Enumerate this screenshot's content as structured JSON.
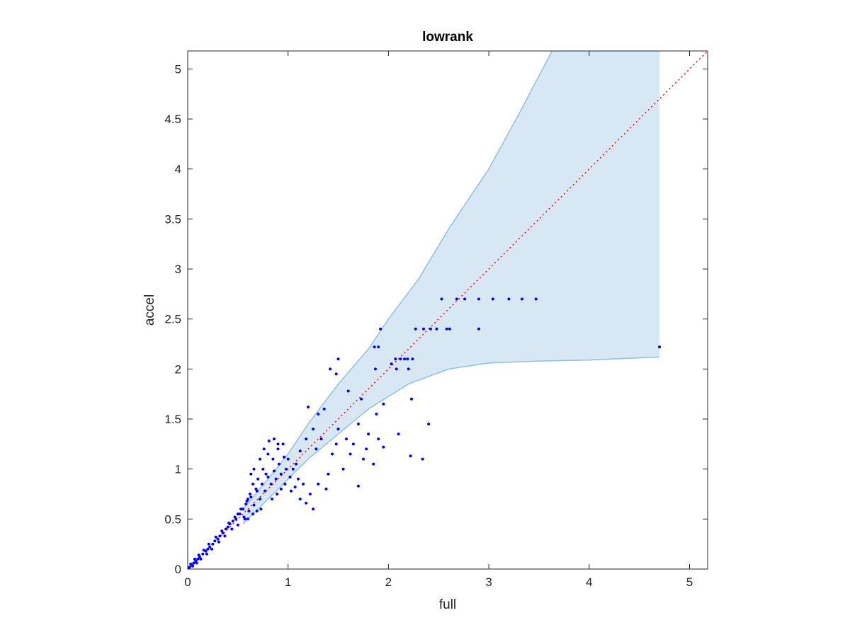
{
  "chart_data": {
    "type": "scatter",
    "title": "lowrank",
    "xlabel": "full",
    "ylabel": "accel",
    "xlim": [
      0,
      5.18
    ],
    "ylim": [
      0,
      5.18
    ],
    "xticks": [
      0,
      1,
      2,
      3,
      4,
      5
    ],
    "yticks": [
      0,
      0.5,
      1,
      1.5,
      2,
      2.5,
      3,
      3.5,
      4,
      4.5,
      5
    ],
    "xtick_labels": [
      "0",
      "1",
      "2",
      "3",
      "4",
      "5"
    ],
    "ytick_labels": [
      "0",
      "0.5",
      "1",
      "1.5",
      "2",
      "2.5",
      "3",
      "3.5",
      "4",
      "4.5",
      "5"
    ],
    "grid": false,
    "reference_line": {
      "style": "dotted",
      "color": "#ff0000",
      "from": [
        0,
        0
      ],
      "to": [
        5.18,
        5.18
      ]
    },
    "band": {
      "color_fill": "#d7e8f4",
      "color_edge": "#8fc0e0",
      "upper": [
        [
          0.55,
          0.6
        ],
        [
          0.8,
          0.9
        ],
        [
          1.0,
          1.15
        ],
        [
          1.2,
          1.45
        ],
        [
          1.5,
          1.85
        ],
        [
          1.8,
          2.2
        ],
        [
          2.0,
          2.5
        ],
        [
          2.3,
          2.9
        ],
        [
          2.6,
          3.4
        ],
        [
          3.0,
          4.0
        ],
        [
          3.3,
          4.55
        ],
        [
          3.63,
          5.18
        ],
        [
          4.7,
          5.18
        ]
      ],
      "lower": [
        [
          0.55,
          0.45
        ],
        [
          0.8,
          0.7
        ],
        [
          1.0,
          0.9
        ],
        [
          1.2,
          1.1
        ],
        [
          1.5,
          1.35
        ],
        [
          1.8,
          1.6
        ],
        [
          2.2,
          1.85
        ],
        [
          2.6,
          2.0
        ],
        [
          3.0,
          2.06
        ],
        [
          3.5,
          2.08
        ],
        [
          4.0,
          2.09
        ],
        [
          4.7,
          2.12
        ]
      ]
    },
    "series": [
      {
        "color": "#0000ff",
        "points": [
          [
            2.53,
            2.7
          ],
          [
            2.68,
            2.7
          ],
          [
            2.76,
            2.7
          ],
          [
            2.9,
            2.7
          ],
          [
            3.04,
            2.7
          ],
          [
            3.2,
            2.7
          ],
          [
            3.33,
            2.7
          ],
          [
            3.47,
            2.7
          ],
          [
            2.27,
            2.4
          ],
          [
            2.35,
            2.4
          ],
          [
            2.42,
            2.4
          ],
          [
            2.48,
            2.4
          ],
          [
            2.58,
            2.4
          ],
          [
            2.61,
            2.4
          ],
          [
            2.9,
            2.4
          ],
          [
            1.92,
            2.4
          ],
          [
            4.7,
            2.22
          ],
          [
            1.86,
            2.22
          ],
          [
            1.9,
            2.22
          ],
          [
            2.07,
            2.1
          ],
          [
            2.12,
            2.1
          ],
          [
            2.16,
            2.1
          ],
          [
            2.19,
            2.1
          ],
          [
            2.24,
            2.1
          ],
          [
            2.03,
            2.05
          ],
          [
            1.5,
            2.1
          ],
          [
            1.42,
            2.0
          ],
          [
            1.87,
            2.0
          ],
          [
            2.08,
            2.0
          ],
          [
            2.2,
            2.0
          ],
          [
            1.48,
            1.95
          ],
          [
            1.2,
            1.62
          ],
          [
            1.3,
            1.55
          ],
          [
            1.36,
            1.6
          ],
          [
            1.6,
            1.78
          ],
          [
            1.73,
            1.7
          ],
          [
            1.95,
            1.65
          ],
          [
            2.23,
            1.7
          ],
          [
            1.88,
            1.55
          ],
          [
            2.4,
            1.45
          ],
          [
            1.7,
            1.45
          ],
          [
            1.5,
            1.4
          ],
          [
            1.8,
            1.35
          ],
          [
            1.9,
            1.3
          ],
          [
            2.1,
            1.35
          ],
          [
            1.95,
            1.22
          ],
          [
            2.22,
            1.13
          ],
          [
            2.34,
            1.1
          ],
          [
            1.75,
            1.1
          ],
          [
            1.85,
            1.05
          ],
          [
            1.62,
            1.15
          ],
          [
            1.7,
            0.83
          ],
          [
            1.55,
            1.0
          ],
          [
            1.4,
            0.95
          ],
          [
            1.38,
            0.8
          ],
          [
            1.3,
            0.85
          ],
          [
            1.22,
            0.75
          ],
          [
            1.15,
            0.85
          ],
          [
            1.1,
            0.9
          ],
          [
            1.05,
            1.0
          ],
          [
            1.0,
            1.1
          ],
          [
            0.95,
            1.25
          ],
          [
            0.9,
            1.2
          ],
          [
            0.85,
            1.1
          ],
          [
            0.8,
            1.15
          ],
          [
            0.78,
            0.95
          ],
          [
            0.75,
            1.0
          ],
          [
            0.7,
            0.9
          ],
          [
            0.68,
            0.8
          ],
          [
            0.65,
            0.85
          ],
          [
            0.62,
            0.75
          ],
          [
            0.6,
            0.7
          ],
          [
            0.58,
            0.65
          ],
          [
            0.55,
            0.6
          ],
          [
            0.52,
            0.55
          ],
          [
            0.5,
            0.55
          ],
          [
            0.48,
            0.5
          ],
          [
            0.45,
            0.48
          ],
          [
            0.42,
            0.45
          ],
          [
            0.4,
            0.42
          ],
          [
            0.38,
            0.4
          ],
          [
            0.35,
            0.36
          ],
          [
            0.32,
            0.33
          ],
          [
            0.3,
            0.3
          ],
          [
            0.27,
            0.28
          ],
          [
            0.25,
            0.25
          ],
          [
            0.22,
            0.22
          ],
          [
            0.2,
            0.2
          ],
          [
            0.18,
            0.18
          ],
          [
            0.15,
            0.15
          ],
          [
            0.12,
            0.12
          ],
          [
            0.1,
            0.1
          ],
          [
            0.08,
            0.08
          ],
          [
            0.06,
            0.06
          ],
          [
            0.04,
            0.04
          ],
          [
            0.02,
            0.02
          ],
          [
            0.01,
            0.01
          ],
          [
            0.03,
            0.05
          ],
          [
            0.05,
            0.03
          ],
          [
            0.07,
            0.1
          ],
          [
            0.09,
            0.06
          ],
          [
            0.11,
            0.14
          ],
          [
            0.13,
            0.1
          ],
          [
            0.16,
            0.19
          ],
          [
            0.19,
            0.15
          ],
          [
            0.21,
            0.25
          ],
          [
            0.24,
            0.2
          ],
          [
            0.28,
            0.32
          ],
          [
            0.31,
            0.27
          ],
          [
            0.34,
            0.38
          ],
          [
            0.37,
            0.33
          ],
          [
            0.41,
            0.46
          ],
          [
            0.44,
            0.4
          ],
          [
            0.47,
            0.52
          ],
          [
            0.5,
            0.44
          ],
          [
            0.53,
            0.6
          ],
          [
            0.56,
            0.52
          ],
          [
            0.59,
            0.68
          ],
          [
            0.61,
            0.58
          ],
          [
            0.63,
            0.72
          ],
          [
            0.66,
            0.64
          ],
          [
            0.69,
            0.78
          ],
          [
            0.72,
            0.7
          ],
          [
            0.74,
            0.85
          ],
          [
            0.77,
            0.78
          ],
          [
            0.8,
            0.92
          ],
          [
            0.83,
            0.85
          ],
          [
            0.86,
            0.98
          ],
          [
            0.88,
            0.9
          ],
          [
            0.91,
            1.05
          ],
          [
            0.93,
            0.95
          ],
          [
            0.96,
            1.12
          ],
          [
            0.98,
            1.0
          ],
          [
            1.02,
            0.92
          ],
          [
            1.08,
            1.05
          ],
          [
            1.12,
            1.18
          ],
          [
            1.18,
            1.3
          ],
          [
            1.25,
            1.4
          ],
          [
            1.28,
            1.2
          ],
          [
            1.33,
            1.3
          ],
          [
            1.44,
            1.15
          ],
          [
            1.48,
            1.25
          ],
          [
            1.58,
            1.3
          ],
          [
            1.65,
            1.25
          ],
          [
            1.78,
            1.2
          ],
          [
            0.84,
            0.7
          ],
          [
            0.89,
            0.75
          ],
          [
            0.93,
            0.8
          ],
          [
            0.97,
            0.85
          ],
          [
            1.03,
            0.78
          ],
          [
            1.07,
            0.82
          ],
          [
            1.12,
            0.7
          ],
          [
            1.18,
            0.66
          ],
          [
            1.25,
            0.6
          ],
          [
            0.73,
            0.6
          ],
          [
            0.69,
            0.58
          ],
          [
            0.65,
            0.55
          ],
          [
            0.6,
            0.5
          ],
          [
            0.57,
            0.5
          ],
          [
            0.81,
            1.28
          ],
          [
            0.86,
            1.3
          ],
          [
            0.9,
            1.25
          ],
          [
            0.76,
            1.2
          ],
          [
            0.72,
            1.1
          ],
          [
            0.66,
            1.0
          ],
          [
            0.63,
            0.95
          ]
        ]
      }
    ]
  }
}
